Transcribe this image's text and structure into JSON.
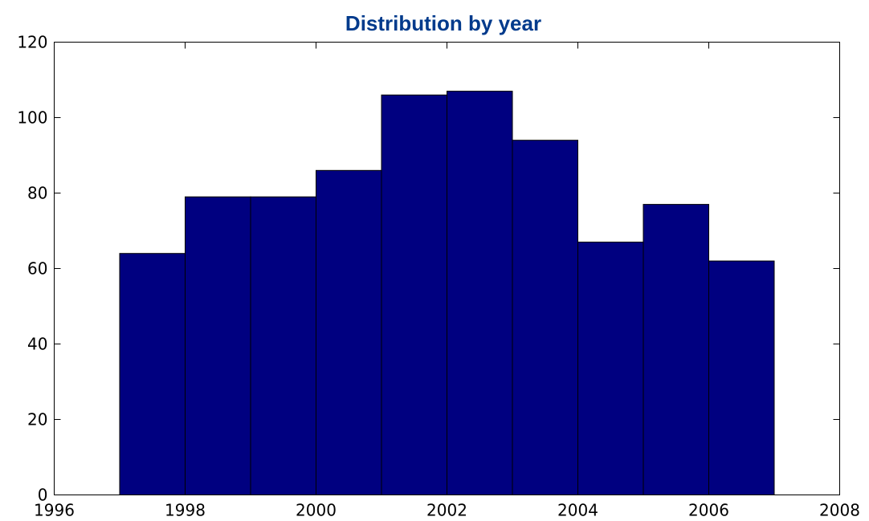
{
  "chart_data": {
    "type": "bar",
    "title": "Distribution by year",
    "xlabel": "",
    "ylabel": "",
    "bins": [
      {
        "x0": 1997,
        "x1": 1998,
        "value": 64
      },
      {
        "x0": 1998,
        "x1": 1999,
        "value": 79
      },
      {
        "x0": 1999,
        "x1": 2000,
        "value": 79
      },
      {
        "x0": 2000,
        "x1": 2001,
        "value": 86
      },
      {
        "x0": 2001,
        "x1": 2002,
        "value": 106
      },
      {
        "x0": 2002,
        "x1": 2003,
        "value": 107
      },
      {
        "x0": 2003,
        "x1": 2004,
        "value": 94
      },
      {
        "x0": 2004,
        "x1": 2005,
        "value": 67
      },
      {
        "x0": 2005,
        "x1": 2006,
        "value": 77
      },
      {
        "x0": 2006,
        "x1": 2007,
        "value": 62
      }
    ],
    "xlim": [
      1996,
      2008
    ],
    "ylim": [
      0,
      120
    ],
    "xticks": [
      "1996",
      "1998",
      "2000",
      "2002",
      "2004",
      "2006",
      "2008"
    ],
    "yticks": [
      "0",
      "20",
      "40",
      "60",
      "80",
      "100",
      "120"
    ],
    "grid": false,
    "legend": "none",
    "colors": {
      "bar_fill": "#000080",
      "bar_edge": "#000000",
      "title": "#003a8c",
      "axes": "#000000",
      "background": "#ffffff"
    }
  }
}
